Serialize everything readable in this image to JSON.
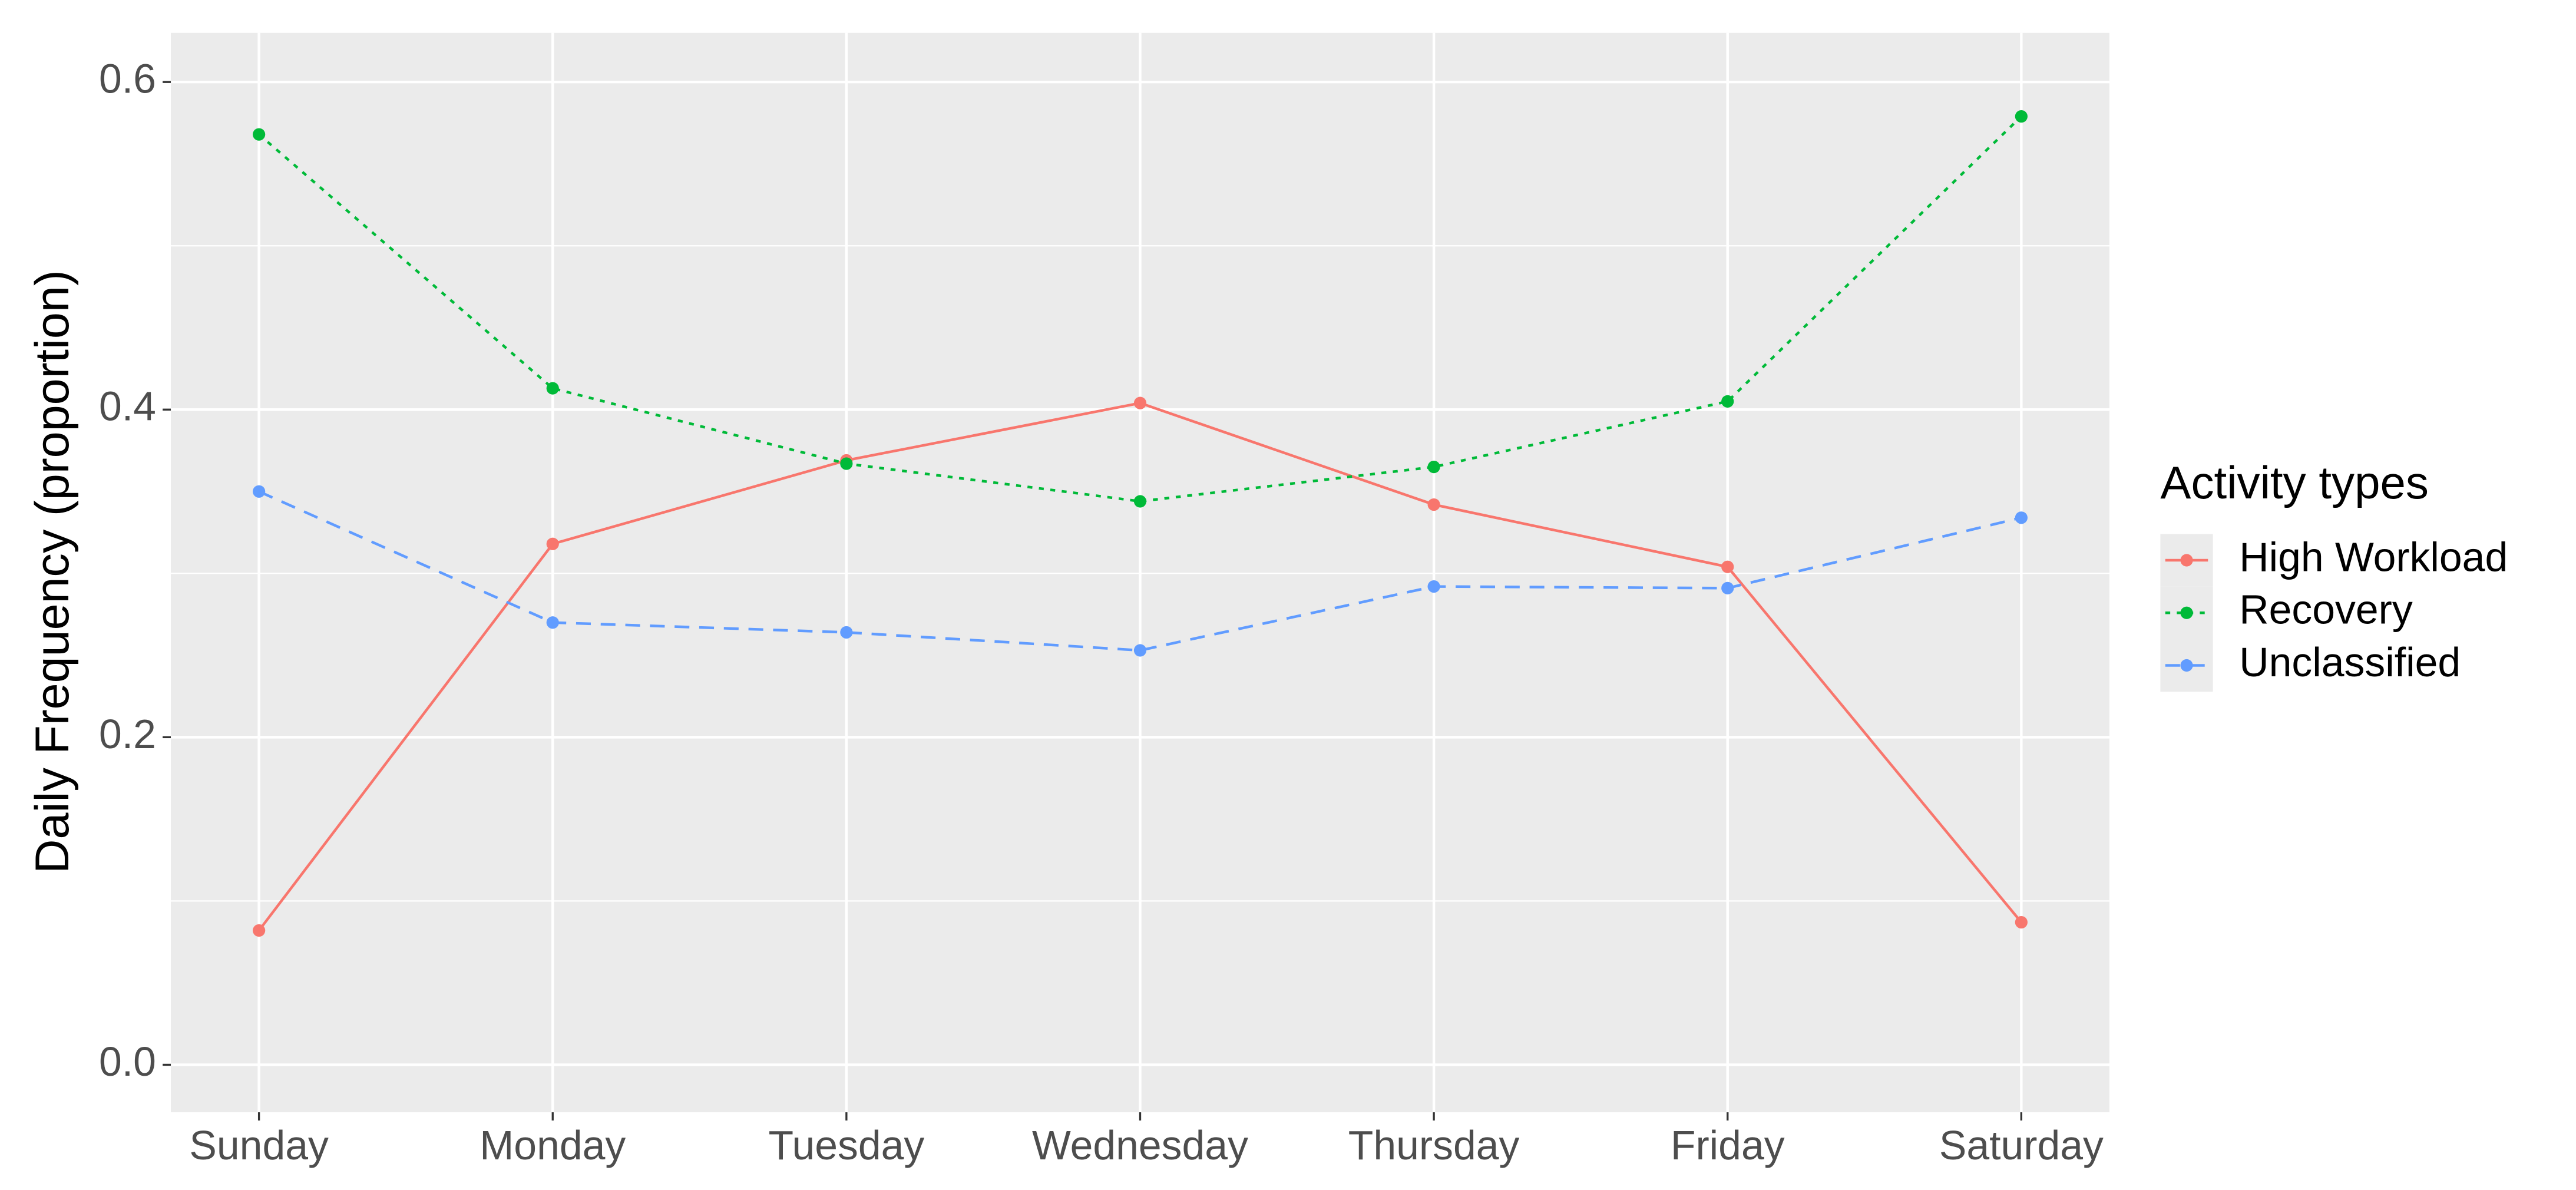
{
  "chart_data": {
    "type": "line",
    "y_label": "Daily Frequency (proportion)",
    "legend_title": "Activity types",
    "legend_position": "right",
    "grid": true,
    "categories": [
      "Sunday",
      "Monday",
      "Tuesday",
      "Wednesday",
      "Thursday",
      "Friday",
      "Saturday"
    ],
    "ylim": [
      -0.029,
      0.63
    ],
    "yticks": [
      {
        "value": 0,
        "label": "0.0"
      },
      0.2,
      0.4,
      0.6
    ],
    "minor_yticks": [
      0.1,
      0.3,
      0.5
    ],
    "series": [
      {
        "name": "High Workload",
        "color": "#f8766d",
        "dash": "solid",
        "values": [
          0.082,
          0.318,
          0.369,
          0.404,
          0.342,
          0.304,
          0.087
        ]
      },
      {
        "name": "Recovery",
        "color": "#00ba38",
        "dash": "dotted",
        "values": [
          0.568,
          0.413,
          0.367,
          0.344,
          0.365,
          0.405,
          0.579
        ]
      },
      {
        "name": "Unclassified",
        "color": "#619cff",
        "dash": "dashed",
        "values": [
          0.35,
          0.27,
          0.264,
          0.253,
          0.292,
          0.291,
          0.334
        ]
      }
    ]
  }
}
